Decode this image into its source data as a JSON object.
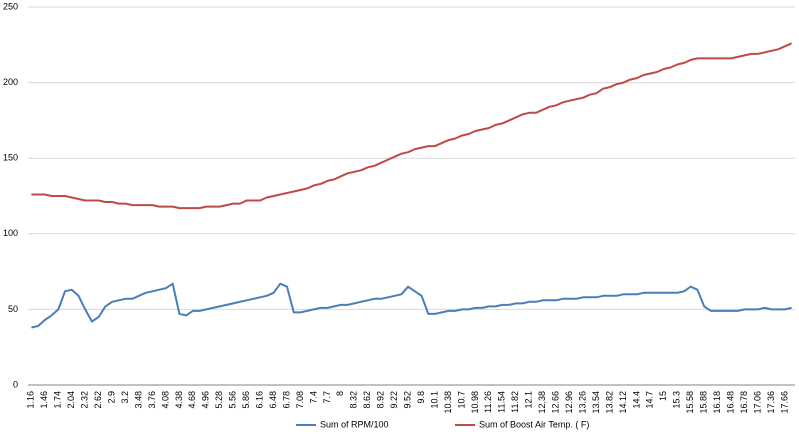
{
  "chart_data": {
    "type": "line",
    "categories": [
      "1.16",
      null,
      "1.46",
      null,
      "1.74",
      null,
      "2.04",
      null,
      "2.32",
      null,
      "2.62",
      null,
      "2.9",
      null,
      "3.2",
      null,
      "3.48",
      null,
      "3.76",
      null,
      "4.08",
      null,
      "4.38",
      null,
      "4.68",
      null,
      "4.96",
      null,
      "5.28",
      null,
      "5.56",
      null,
      "5.86",
      null,
      "6.16",
      null,
      "6.48",
      null,
      "6.78",
      null,
      "7.08",
      null,
      "7.4",
      null,
      "7.7",
      null,
      "8",
      null,
      "8.32",
      null,
      "8.62",
      null,
      "8.92",
      null,
      "9.22",
      null,
      "9.52",
      null,
      "9.8",
      null,
      "10.1",
      null,
      "10.38",
      null,
      "10.7",
      null,
      "10.98",
      null,
      "11.26",
      null,
      "11.54",
      null,
      "11.82",
      null,
      "12.1",
      null,
      "12.38",
      null,
      "12.66",
      null,
      "12.96",
      null,
      "13.26",
      null,
      "13.54",
      null,
      "13.82",
      null,
      "14.12",
      null,
      "14.4",
      null,
      "14.7",
      null,
      "15",
      null,
      "15.3",
      null,
      "15.58",
      null,
      "15.88",
      null,
      "16.18",
      null,
      "16.48",
      null,
      "16.78",
      null,
      "17.06",
      null,
      "17.36",
      null,
      "17.66",
      null
    ],
    "series": [
      {
        "name": "Sum of RPM/100",
        "color": "#4a7ebb",
        "values": [
          38,
          39,
          43,
          46,
          50,
          62,
          63,
          59,
          50,
          42,
          45,
          52,
          55,
          56,
          57,
          57,
          59,
          61,
          62,
          63,
          64,
          67,
          47,
          46,
          49,
          49,
          50,
          51,
          52,
          53,
          54,
          55,
          56,
          57,
          58,
          59,
          61,
          67,
          65,
          48,
          48,
          49,
          50,
          51,
          51,
          52,
          53,
          53,
          54,
          55,
          56,
          57,
          57,
          58,
          59,
          60,
          65,
          62,
          59,
          47,
          47,
          48,
          49,
          49,
          50,
          50,
          51,
          51,
          52,
          52,
          53,
          53,
          54,
          54,
          55,
          55,
          56,
          56,
          56,
          57,
          57,
          57,
          58,
          58,
          58,
          59,
          59,
          59,
          60,
          60,
          60,
          61,
          61,
          61,
          61,
          61,
          61,
          62,
          65,
          63,
          52,
          49,
          49,
          49,
          49,
          49,
          50,
          50,
          50,
          51,
          50,
          50,
          50,
          51
        ]
      },
      {
        "name": "Sum of Boost Air Temp. ( F)",
        "color": "#be4b48",
        "values": [
          126,
          126,
          126,
          125,
          125,
          125,
          124,
          123,
          122,
          122,
          122,
          121,
          121,
          120,
          120,
          119,
          119,
          119,
          119,
          118,
          118,
          118,
          117,
          117,
          117,
          117,
          118,
          118,
          118,
          119,
          120,
          120,
          122,
          122,
          122,
          124,
          125,
          126,
          127,
          128,
          129,
          130,
          132,
          133,
          135,
          136,
          138,
          140,
          141,
          142,
          144,
          145,
          147,
          149,
          151,
          153,
          154,
          156,
          157,
          158,
          158,
          160,
          162,
          163,
          165,
          166,
          168,
          169,
          170,
          172,
          173,
          175,
          177,
          179,
          180,
          180,
          182,
          184,
          185,
          187,
          188,
          189,
          190,
          192,
          193,
          196,
          197,
          199,
          200,
          202,
          203,
          205,
          206,
          207,
          209,
          210,
          212,
          213,
          215,
          216,
          216,
          216,
          216,
          216,
          216,
          217,
          218,
          219,
          219,
          220,
          221,
          222,
          224,
          226
        ]
      }
    ],
    "ylim": [
      0,
      250
    ],
    "yticks": [
      0,
      50,
      100,
      150,
      200,
      250
    ],
    "grid": true,
    "legend": "bottom"
  }
}
